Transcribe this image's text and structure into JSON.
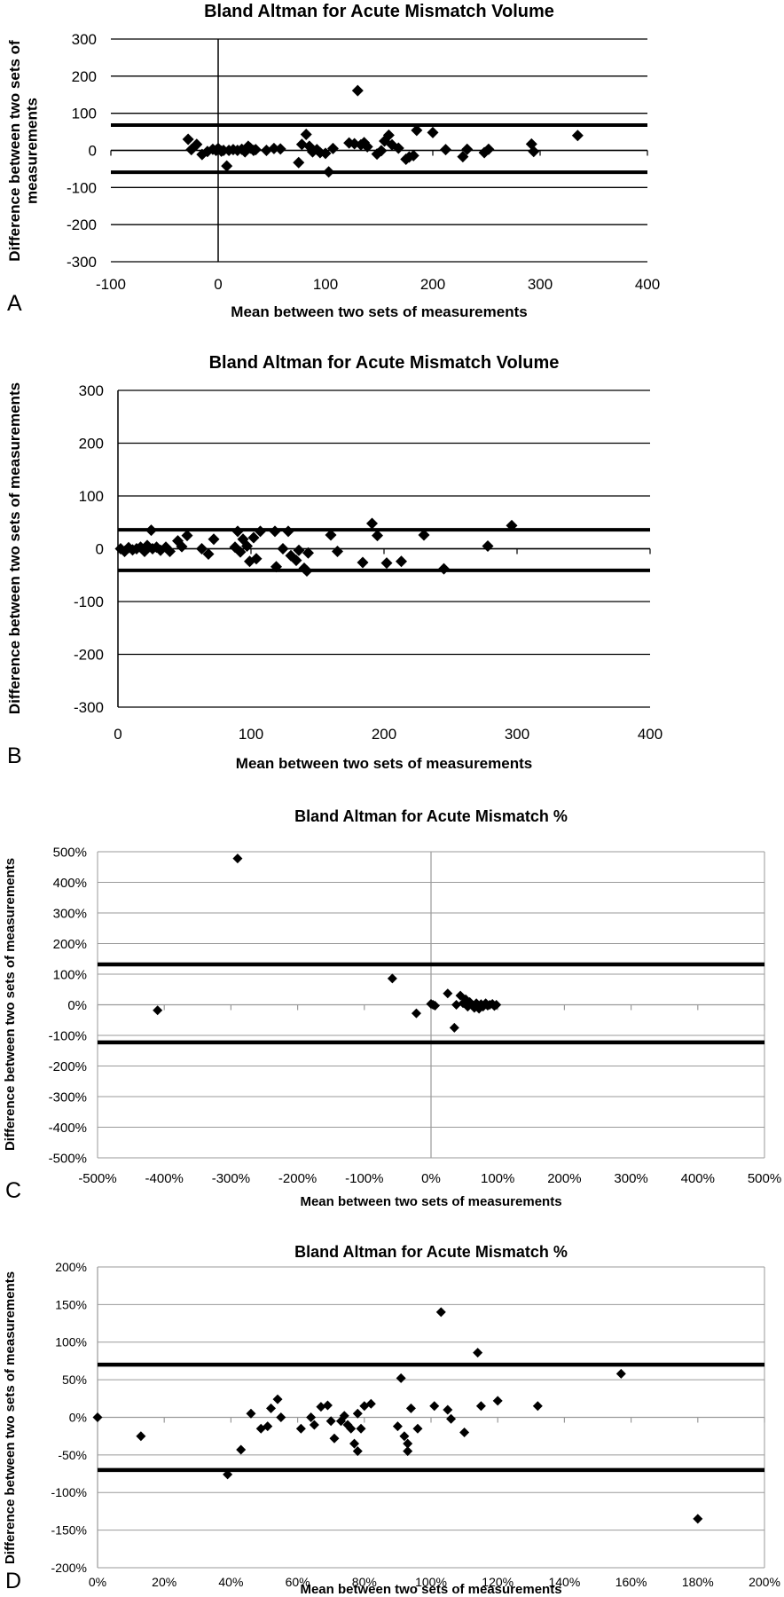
{
  "chart_data": [
    {
      "panel": "A",
      "type": "scatter",
      "title": "Bland Altman for Acute Mismatch Volume",
      "xlabel": "Mean between two sets of measurements",
      "ylabel": "Difference between two sets of measurements",
      "xlim": [
        -100,
        400
      ],
      "ylim": [
        -300,
        300
      ],
      "xticks": [
        "-100",
        "0",
        "100",
        "200",
        "300",
        "400"
      ],
      "yticks": [
        "300",
        "200",
        "100",
        "0",
        "-100",
        "-200",
        "-300"
      ],
      "grid": true,
      "limits_of_agreement": [
        68,
        -59
      ],
      "points": [
        [
          -28,
          30
        ],
        [
          -25,
          2
        ],
        [
          -20,
          16
        ],
        [
          -15,
          -11
        ],
        [
          -10,
          -3
        ],
        [
          -5,
          3
        ],
        [
          -2,
          0
        ],
        [
          0,
          5
        ],
        [
          3,
          -2
        ],
        [
          5,
          0
        ],
        [
          8,
          -42
        ],
        [
          10,
          0
        ],
        [
          14,
          2
        ],
        [
          18,
          0
        ],
        [
          22,
          3
        ],
        [
          25,
          -4
        ],
        [
          28,
          11
        ],
        [
          30,
          6
        ],
        [
          33,
          0
        ],
        [
          35,
          2
        ],
        [
          45,
          0
        ],
        [
          52,
          5
        ],
        [
          58,
          4
        ],
        [
          75,
          -33
        ],
        [
          78,
          16
        ],
        [
          82,
          43
        ],
        [
          85,
          11
        ],
        [
          88,
          -4
        ],
        [
          92,
          2
        ],
        [
          95,
          -6
        ],
        [
          100,
          -8
        ],
        [
          103,
          -58
        ],
        [
          107,
          5
        ],
        [
          122,
          20
        ],
        [
          127,
          18
        ],
        [
          130,
          161
        ],
        [
          133,
          15
        ],
        [
          136,
          21
        ],
        [
          139,
          10
        ],
        [
          148,
          -10
        ],
        [
          152,
          -1
        ],
        [
          155,
          25
        ],
        [
          159,
          41
        ],
        [
          162,
          15
        ],
        [
          168,
          6
        ],
        [
          175,
          -24
        ],
        [
          178,
          -18
        ],
        [
          182,
          -14
        ],
        [
          185,
          54
        ],
        [
          200,
          48
        ],
        [
          212,
          2
        ],
        [
          228,
          -17
        ],
        [
          232,
          3
        ],
        [
          248,
          -6
        ],
        [
          252,
          3
        ],
        [
          292,
          17
        ],
        [
          294,
          -3
        ],
        [
          335,
          40
        ]
      ]
    },
    {
      "panel": "B",
      "type": "scatter",
      "title": "Bland Altman for Acute Mismatch Volume",
      "xlabel": "Mean between two sets of measurements",
      "ylabel": "Difference between two sets of measurements",
      "xlim": [
        0,
        400
      ],
      "ylim": [
        -300,
        300
      ],
      "xticks": [
        "0",
        "100",
        "200",
        "300",
        "400"
      ],
      "yticks": [
        "300",
        "200",
        "100",
        "0",
        "-100",
        "-200",
        "-300"
      ],
      "grid": true,
      "limits_of_agreement": [
        36,
        -41
      ],
      "points": [
        [
          2,
          0
        ],
        [
          5,
          -5
        ],
        [
          8,
          2
        ],
        [
          11,
          -2
        ],
        [
          14,
          0
        ],
        [
          17,
          3
        ],
        [
          20,
          -5
        ],
        [
          22,
          6
        ],
        [
          25,
          35
        ],
        [
          26,
          0
        ],
        [
          29,
          3
        ],
        [
          32,
          -3
        ],
        [
          36,
          3
        ],
        [
          39,
          -5
        ],
        [
          45,
          15
        ],
        [
          48,
          4
        ],
        [
          52,
          25
        ],
        [
          63,
          0
        ],
        [
          68,
          -10
        ],
        [
          72,
          18
        ],
        [
          88,
          3
        ],
        [
          90,
          33
        ],
        [
          92,
          -6
        ],
        [
          94,
          18
        ],
        [
          97,
          5
        ],
        [
          99,
          -24
        ],
        [
          102,
          21
        ],
        [
          104,
          -19
        ],
        [
          107,
          33
        ],
        [
          118,
          33
        ],
        [
          119,
          -34
        ],
        [
          124,
          0
        ],
        [
          128,
          33
        ],
        [
          130,
          -13
        ],
        [
          134,
          -22
        ],
        [
          136,
          -3
        ],
        [
          140,
          -37
        ],
        [
          142,
          -42
        ],
        [
          143,
          -8
        ],
        [
          160,
          26
        ],
        [
          165,
          -5
        ],
        [
          184,
          -26
        ],
        [
          191,
          48
        ],
        [
          195,
          25
        ],
        [
          202,
          -27
        ],
        [
          213,
          -24
        ],
        [
          230,
          26
        ],
        [
          245,
          -38
        ],
        [
          278,
          5
        ],
        [
          296,
          44
        ]
      ]
    },
    {
      "panel": "C",
      "type": "scatter",
      "title": "Bland Altman for Acute Mismatch %",
      "xlabel": "Mean between two sets of measurements",
      "ylabel": "Difference between two sets of measurements",
      "xlim": [
        -500,
        500
      ],
      "ylim": [
        -500,
        500
      ],
      "xticks": [
        "-500%",
        "-400%",
        "-300%",
        "-200%",
        "-100%",
        "0%",
        "100%",
        "200%",
        "300%",
        "400%",
        "500%"
      ],
      "yticks": [
        "500%",
        "400%",
        "300%",
        "200%",
        "100%",
        "0%",
        "-100%",
        "-200%",
        "-300%",
        "-400%",
        "-500%"
      ],
      "grid": true,
      "limits_of_agreement": [
        132,
        -123
      ],
      "points": [
        [
          -410,
          -18
        ],
        [
          -290,
          478
        ],
        [
          -58,
          86
        ],
        [
          -22,
          -28
        ],
        [
          0,
          3
        ],
        [
          3,
          0
        ],
        [
          6,
          -3
        ],
        [
          25,
          37
        ],
        [
          35,
          -75
        ],
        [
          38,
          0
        ],
        [
          44,
          30
        ],
        [
          48,
          5
        ],
        [
          52,
          18
        ],
        [
          55,
          -6
        ],
        [
          58,
          9
        ],
        [
          62,
          0
        ],
        [
          65,
          -10
        ],
        [
          68,
          5
        ],
        [
          72,
          -13
        ],
        [
          75,
          2
        ],
        [
          78,
          -6
        ],
        [
          82,
          5
        ],
        [
          85,
          -3
        ],
        [
          88,
          0
        ],
        [
          92,
          3
        ],
        [
          95,
          -4
        ],
        [
          98,
          0
        ]
      ]
    },
    {
      "panel": "D",
      "type": "scatter",
      "title": "Bland Altman for Acute Mismatch %",
      "xlabel": "Mean between two sets of measurements",
      "ylabel": "Difference between two sets of measurements",
      "xlim": [
        0,
        200
      ],
      "ylim": [
        -200,
        200
      ],
      "xticks": [
        "0%",
        "20%",
        "40%",
        "60%",
        "80%",
        "100%",
        "120%",
        "140%",
        "160%",
        "180%",
        "200%"
      ],
      "yticks": [
        "200%",
        "150%",
        "100%",
        "50%",
        "0%",
        "-50%",
        "-100%",
        "-150%",
        "-200%"
      ],
      "grid": true,
      "limits_of_agreement": [
        70,
        -70
      ],
      "points": [
        [
          0,
          0
        ],
        [
          13,
          -25
        ],
        [
          39,
          -76
        ],
        [
          43,
          -43
        ],
        [
          46,
          5
        ],
        [
          49,
          -15
        ],
        [
          51,
          -12
        ],
        [
          52,
          12
        ],
        [
          54,
          24
        ],
        [
          55,
          0
        ],
        [
          61,
          -15
        ],
        [
          64,
          0
        ],
        [
          65,
          -10
        ],
        [
          67,
          14
        ],
        [
          69,
          16
        ],
        [
          70,
          -5
        ],
        [
          71,
          -28
        ],
        [
          73,
          -5
        ],
        [
          74,
          2
        ],
        [
          75,
          -10
        ],
        [
          76,
          -15
        ],
        [
          77,
          -35
        ],
        [
          78,
          5
        ],
        [
          78,
          -45
        ],
        [
          79,
          -15
        ],
        [
          80,
          15
        ],
        [
          82,
          18
        ],
        [
          90,
          -12
        ],
        [
          91,
          52
        ],
        [
          92,
          -25
        ],
        [
          93,
          -35
        ],
        [
          93,
          -45
        ],
        [
          94,
          12
        ],
        [
          96,
          -15
        ],
        [
          101,
          15
        ],
        [
          103,
          140
        ],
        [
          105,
          10
        ],
        [
          106,
          -2
        ],
        [
          110,
          -20
        ],
        [
          114,
          86
        ],
        [
          115,
          15
        ],
        [
          120,
          22
        ],
        [
          132,
          15
        ],
        [
          157,
          58
        ],
        [
          180,
          -135
        ]
      ]
    }
  ]
}
